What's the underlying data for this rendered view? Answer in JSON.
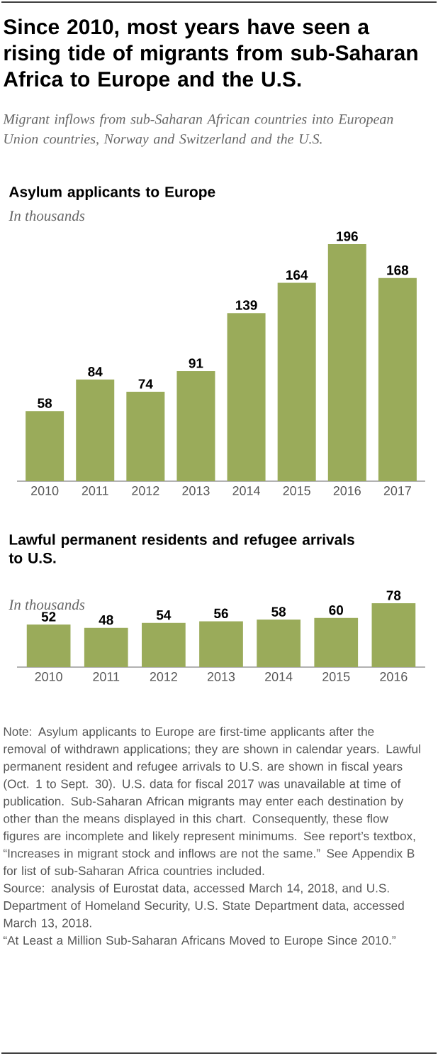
{
  "chart_data": [
    {
      "type": "other",
      "title": "Since 2010, most years have seen a rising tide of migrants from sub-Saharan Africa to Europe and the U.S.",
      "subtitle": "Migrant inflows from sub-Saharan African countries into European Union countries, Norway and Switzerland and the U.S.",
      "annotations": [
        "Note: Asylum applicants to Europe are first-time applicants after the removal of withdrawn applications; they are shown in calendar years. Lawful permanent resident and refugee arrivals to U.S. are shown in fiscal years (Oct. 1 to Sept. 30). U.S. data for fiscal 2017 was unavailable at time of publication. Sub-Saharan African migrants may enter each destination by other than the means displayed in this chart. Consequently, these flow figures are incomplete and likely represent minimums. See report’s textbox, “Increases in migrant stock and inflows are not the same.” See Appendix B for list of sub-Saharan Africa countries included.",
        "Source: analysis of Eurostat data, accessed March 14, 2018, and U.S. Department of Homeland Security, U.S. State Department data, accessed March 13, 2018.",
        "“At Least a Million Sub-Saharan Africans Moved to Europe Since 2010.”"
      ]
    },
    {
      "type": "bar",
      "title": "Asylum applicants to Europe",
      "subtitle": "In thousands",
      "categories": [
        "2010",
        "2011",
        "2012",
        "2013",
        "2014",
        "2015",
        "2016",
        "2017"
      ],
      "values": [
        58,
        84,
        74,
        91,
        139,
        164,
        196,
        168
      ],
      "color": "#9aab5a",
      "data_labels": true
    },
    {
      "type": "bar",
      "title": "Lawful permanent residents and refugee arrivals to U.S.",
      "subtitle": "In thousands",
      "categories": [
        "2010",
        "2011",
        "2012",
        "2013",
        "2014",
        "2015",
        "2016"
      ],
      "values": [
        52,
        48,
        54,
        56,
        58,
        60,
        78
      ],
      "color": "#9aab5a",
      "data_labels": true
    }
  ]
}
